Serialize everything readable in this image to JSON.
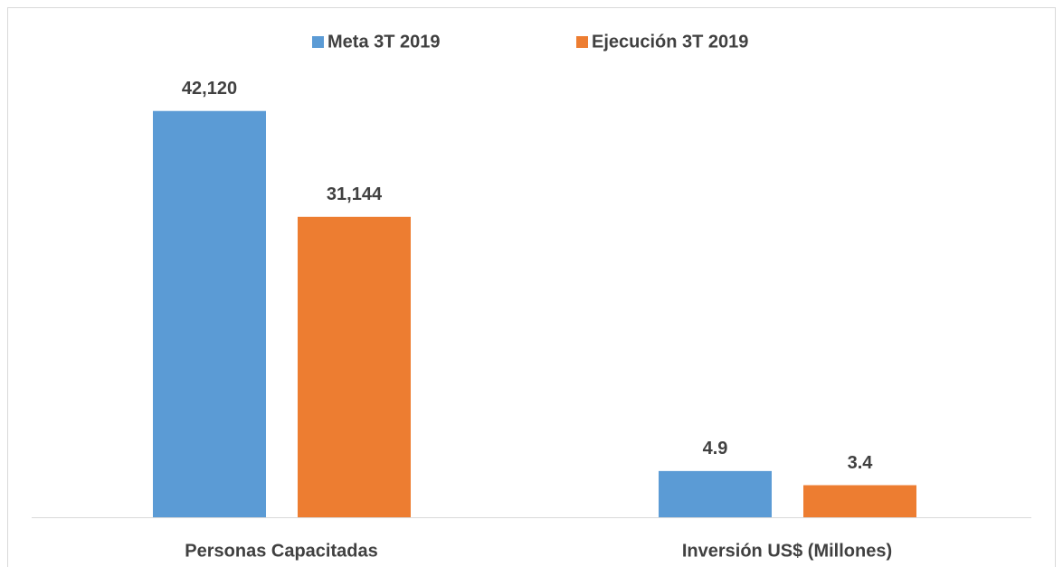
{
  "chart_data": [
    {
      "type": "bar",
      "categories": [
        "Personas Capacitadas"
      ],
      "series": [
        {
          "name": "Meta 3T 2019",
          "color": "#5b9bd5",
          "values": [
            42120
          ],
          "value_labels": [
            "42,120"
          ]
        },
        {
          "name": "Ejecución 3T 2019",
          "color": "#ed7d31",
          "values": [
            31144
          ],
          "value_labels": [
            "31,144"
          ]
        }
      ],
      "ylim": [
        0,
        45000
      ],
      "legend": "top"
    },
    {
      "type": "bar",
      "categories": [
        "Inversión US$ (Millones)"
      ],
      "series": [
        {
          "color": "#5b9bd5",
          "values": [
            4.9
          ]
        },
        {
          "color": "#ed7d31",
          "values": [
            3.4
          ]
        }
      ],
      "ylim": [
        0,
        46
      ]
    }
  ]
}
